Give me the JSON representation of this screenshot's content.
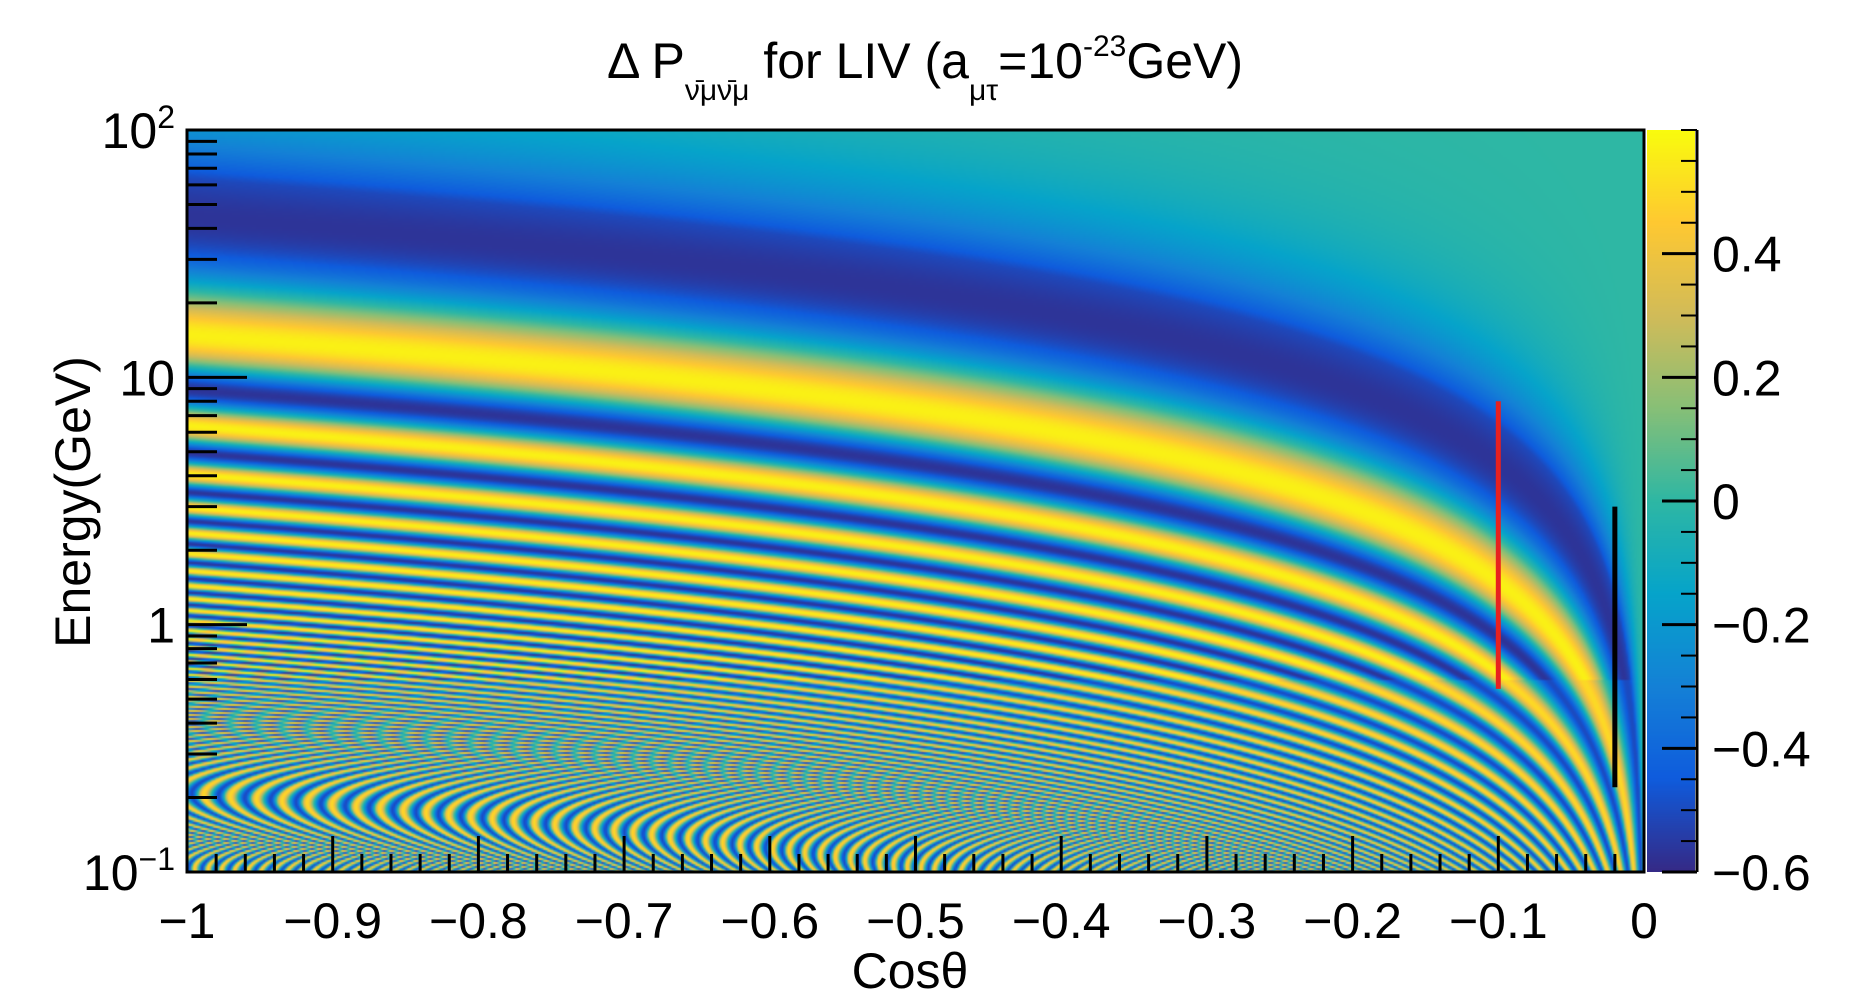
{
  "chart_data": {
    "type": "heatmap",
    "title": {
      "prefix": "Δ P",
      "subscript": "ν̄μν̄μ",
      "middle": " for LIV (a",
      "subscript2": "μτ",
      "middle2": "=10",
      "superscript": "-23",
      "suffix": "GeV)"
    },
    "xlabel": "Cosθ",
    "ylabel": "Energy(GeV)",
    "x_range": [
      -1,
      0
    ],
    "y_range": [
      0.1,
      100
    ],
    "y_scale": "log",
    "z_range": [
      -0.6,
      0.6
    ],
    "x_tick_labels": [
      {
        "value": -1,
        "label": "−1"
      },
      {
        "value": -0.9,
        "label": "−0.9"
      },
      {
        "value": -0.8,
        "label": "−0.8"
      },
      {
        "value": -0.7,
        "label": "−0.7"
      },
      {
        "value": -0.6,
        "label": "−0.6"
      },
      {
        "value": -0.5,
        "label": "−0.5"
      },
      {
        "value": -0.4,
        "label": "−0.4"
      },
      {
        "value": -0.3,
        "label": "−0.3"
      },
      {
        "value": -0.2,
        "label": "−0.2"
      },
      {
        "value": -0.1,
        "label": "−0.1"
      },
      {
        "value": 0,
        "label": "0"
      }
    ],
    "y_tick_labels": [
      {
        "value": 100,
        "base": "10",
        "exp": "2"
      },
      {
        "value": 10,
        "base": "10",
        "exp": ""
      },
      {
        "value": 1,
        "base": "1",
        "exp": ""
      },
      {
        "value": 0.1,
        "base": "10",
        "exp": "−1"
      }
    ],
    "colorbar_ticks": [
      {
        "value": 0.4,
        "label": "0.4"
      },
      {
        "value": 0.2,
        "label": "0.2"
      },
      {
        "value": 0,
        "label": "0"
      },
      {
        "value": -0.2,
        "label": "−0.2"
      },
      {
        "value": -0.4,
        "label": "−0.4"
      },
      {
        "value": -0.6,
        "label": "−0.6"
      }
    ],
    "overlays": [
      {
        "type": "vertical-line",
        "x": -0.1,
        "y_from": 0.55,
        "y_to": 8,
        "color": "#e8211f"
      },
      {
        "type": "vertical-line",
        "x": -0.02,
        "y_from": 0.22,
        "y_to": 3,
        "color": "#000000"
      }
    ],
    "bands": [
      {
        "energy": 40,
        "value": -0.55
      },
      {
        "energy": 15,
        "value": 0.5
      },
      {
        "energy": 9.2,
        "value": -0.5
      },
      {
        "energy": 6.5,
        "value": 0.45
      },
      {
        "energy": 5,
        "value": -0.45
      },
      {
        "energy": 4.1,
        "value": 0.42
      },
      {
        "energy": 3.4,
        "value": -0.4
      }
    ],
    "colors": {
      "palette": [
        "#352a87",
        "#0f5cdd",
        "#1481d6",
        "#06a4ca",
        "#2eb7a4",
        "#87bf77",
        "#d1bb59",
        "#fec832",
        "#f9fb0e"
      ]
    }
  }
}
